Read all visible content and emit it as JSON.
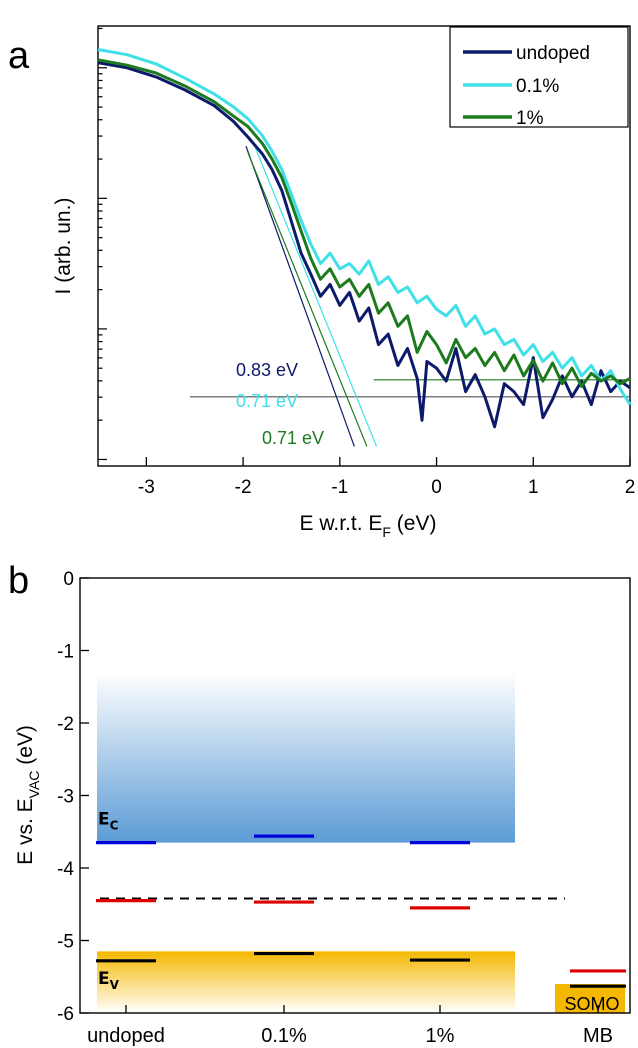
{
  "chart_data": [
    {
      "panel": "a",
      "type": "line",
      "xlabel": "E w.r.t. E",
      "xlabel_sub": "F",
      "xlabel_suffix": " (eV)",
      "ylabel": "I (arb. un.)",
      "xlim": [
        -3.5,
        2.0
      ],
      "ylog": true,
      "ylim_decades": [
        0.0,
        3.0
      ],
      "xticks": [
        -3,
        -2,
        -1,
        0,
        1,
        2
      ],
      "legend": {
        "position": "top-right",
        "entries": [
          "undoped",
          "0.1%",
          "1%"
        ]
      },
      "series": [
        {
          "name": "undoped",
          "color": "#0d1a6b",
          "x": [
            -3.5,
            -3.2,
            -2.9,
            -2.6,
            -2.3,
            -2.1,
            -1.95,
            -1.8,
            -1.7,
            -1.6,
            -1.5,
            -1.4,
            -1.3,
            -1.2,
            -1.1,
            -1.0,
            -0.9,
            -0.8,
            -0.7,
            -0.6,
            -0.5,
            -0.4,
            -0.3,
            -0.2,
            -0.15,
            -0.1,
            0.0,
            0.1,
            0.2,
            0.3,
            0.4,
            0.5,
            0.6,
            0.7,
            0.8,
            0.9,
            1.0,
            1.1,
            1.2,
            1.3,
            1.4,
            1.5,
            1.6,
            1.7,
            1.8,
            1.9,
            2.0
          ],
          "y": [
            2.74,
            2.7,
            2.63,
            2.53,
            2.41,
            2.29,
            2.17,
            2.04,
            1.92,
            1.76,
            1.52,
            1.28,
            1.12,
            0.95,
            1.04,
            0.88,
            0.98,
            0.76,
            0.86,
            0.58,
            0.66,
            0.42,
            0.55,
            0.32,
            0.0,
            0.45,
            0.4,
            0.3,
            0.55,
            0.22,
            0.35,
            0.18,
            -0.05,
            0.28,
            0.22,
            0.12,
            0.48,
            0.02,
            0.16,
            0.34,
            0.18,
            0.3,
            0.12,
            0.38,
            0.22,
            0.3,
            0.25
          ]
        },
        {
          "name": "0.1%",
          "color": "#3fe0e8",
          "x": [
            -3.5,
            -3.2,
            -2.9,
            -2.6,
            -2.3,
            -2.1,
            -1.95,
            -1.8,
            -1.7,
            -1.6,
            -1.5,
            -1.4,
            -1.3,
            -1.2,
            -1.1,
            -1.0,
            -0.9,
            -0.8,
            -0.7,
            -0.6,
            -0.5,
            -0.4,
            -0.3,
            -0.2,
            -0.1,
            0.0,
            0.1,
            0.2,
            0.3,
            0.4,
            0.5,
            0.6,
            0.7,
            0.8,
            0.9,
            1.0,
            1.1,
            1.2,
            1.3,
            1.4,
            1.5,
            1.6,
            1.7,
            1.8,
            1.9,
            2.0
          ],
          "y": [
            2.84,
            2.8,
            2.73,
            2.62,
            2.5,
            2.4,
            2.31,
            2.18,
            2.06,
            1.92,
            1.73,
            1.53,
            1.35,
            1.2,
            1.28,
            1.16,
            1.2,
            1.12,
            1.22,
            1.04,
            1.1,
            0.98,
            1.02,
            0.9,
            0.95,
            0.85,
            0.8,
            0.88,
            0.72,
            0.8,
            0.66,
            0.7,
            0.58,
            0.62,
            0.5,
            0.58,
            0.45,
            0.52,
            0.4,
            0.48,
            0.34,
            0.42,
            0.3,
            0.38,
            0.24,
            0.12
          ]
        },
        {
          "name": "1%",
          "color": "#1e7a1e",
          "x": [
            -3.5,
            -3.2,
            -2.9,
            -2.6,
            -2.3,
            -2.1,
            -1.95,
            -1.8,
            -1.7,
            -1.6,
            -1.5,
            -1.4,
            -1.3,
            -1.2,
            -1.1,
            -1.0,
            -0.9,
            -0.8,
            -0.7,
            -0.6,
            -0.5,
            -0.4,
            -0.3,
            -0.2,
            -0.1,
            0.0,
            0.1,
            0.2,
            0.3,
            0.4,
            0.5,
            0.6,
            0.7,
            0.8,
            0.9,
            1.0,
            1.1,
            1.2,
            1.3,
            1.4,
            1.5,
            1.6,
            1.7,
            1.8,
            1.9,
            2.0
          ],
          "y": [
            2.76,
            2.72,
            2.66,
            2.56,
            2.44,
            2.33,
            2.25,
            2.12,
            2.0,
            1.86,
            1.66,
            1.45,
            1.24,
            1.08,
            1.16,
            1.02,
            1.08,
            0.95,
            1.04,
            0.82,
            0.9,
            0.72,
            0.8,
            0.52,
            0.68,
            0.58,
            0.44,
            0.62,
            0.48,
            0.55,
            0.42,
            0.52,
            0.38,
            0.5,
            0.34,
            0.46,
            0.3,
            0.44,
            0.28,
            0.4,
            0.26,
            0.36,
            0.3,
            0.34,
            0.28,
            0.32
          ]
        }
      ],
      "fit_lines": [
        {
          "series": "undoped",
          "from": [
            -1.97,
            2.1
          ],
          "to": [
            -0.85,
            -0.2
          ],
          "color": "#0d1a6b"
        },
        {
          "series": "0.1%",
          "from": [
            -1.88,
            2.1
          ],
          "to": [
            -0.62,
            -0.2
          ],
          "color": "#3fe0e8"
        },
        {
          "series": "1%",
          "from": [
            -1.95,
            2.05
          ],
          "to": [
            -0.72,
            -0.2
          ],
          "color": "#1e7a1e"
        }
      ],
      "baselines": [
        {
          "color": "#555555",
          "y": 0.18,
          "x": [
            -2.55,
            2.0
          ]
        },
        {
          "color": "#1e7a1e",
          "y": 0.31,
          "x": [
            -0.65,
            2.0
          ]
        }
      ],
      "annotations": [
        {
          "text": "0.83 eV",
          "color": "#0d1a6b"
        },
        {
          "text": "0.71 eV",
          "color": "#3fe0e8"
        },
        {
          "text": "0.71 eV",
          "color": "#1e7a1e"
        }
      ]
    },
    {
      "panel": "b",
      "type": "bar",
      "ylabel": "E vs. E",
      "ylabel_sub": "VAC",
      "ylabel_suffix": " (eV)",
      "ylim": [
        -6,
        0
      ],
      "yticks": [
        0,
        -1,
        -2,
        -3,
        -4,
        -5,
        -6
      ],
      "categories": [
        "undoped",
        "0.1%",
        "1%",
        "MB"
      ],
      "conduction_band": {
        "top": -1.3,
        "bottom": -3.65,
        "label": "E",
        "sub": "C",
        "color": "#5b9bd5"
      },
      "valence_band": {
        "top": -5.15,
        "bottom": -6.0,
        "label": "E",
        "sub": "V",
        "color": "#f5b800"
      },
      "fermi_dashed": -4.42,
      "series": [
        {
          "name": "conduction band edge",
          "color": "#0000dd",
          "values": [
            -3.65,
            -3.56,
            -3.65,
            null
          ]
        },
        {
          "name": "Fermi level",
          "color": "#dd0000",
          "values": [
            -4.45,
            -4.47,
            -4.55,
            -5.42
          ]
        },
        {
          "name": "valence band edge",
          "color": "#000000",
          "values": [
            -5.28,
            -5.18,
            -5.27,
            -5.63
          ]
        }
      ],
      "mb_level_label": "SOMO"
    }
  ]
}
